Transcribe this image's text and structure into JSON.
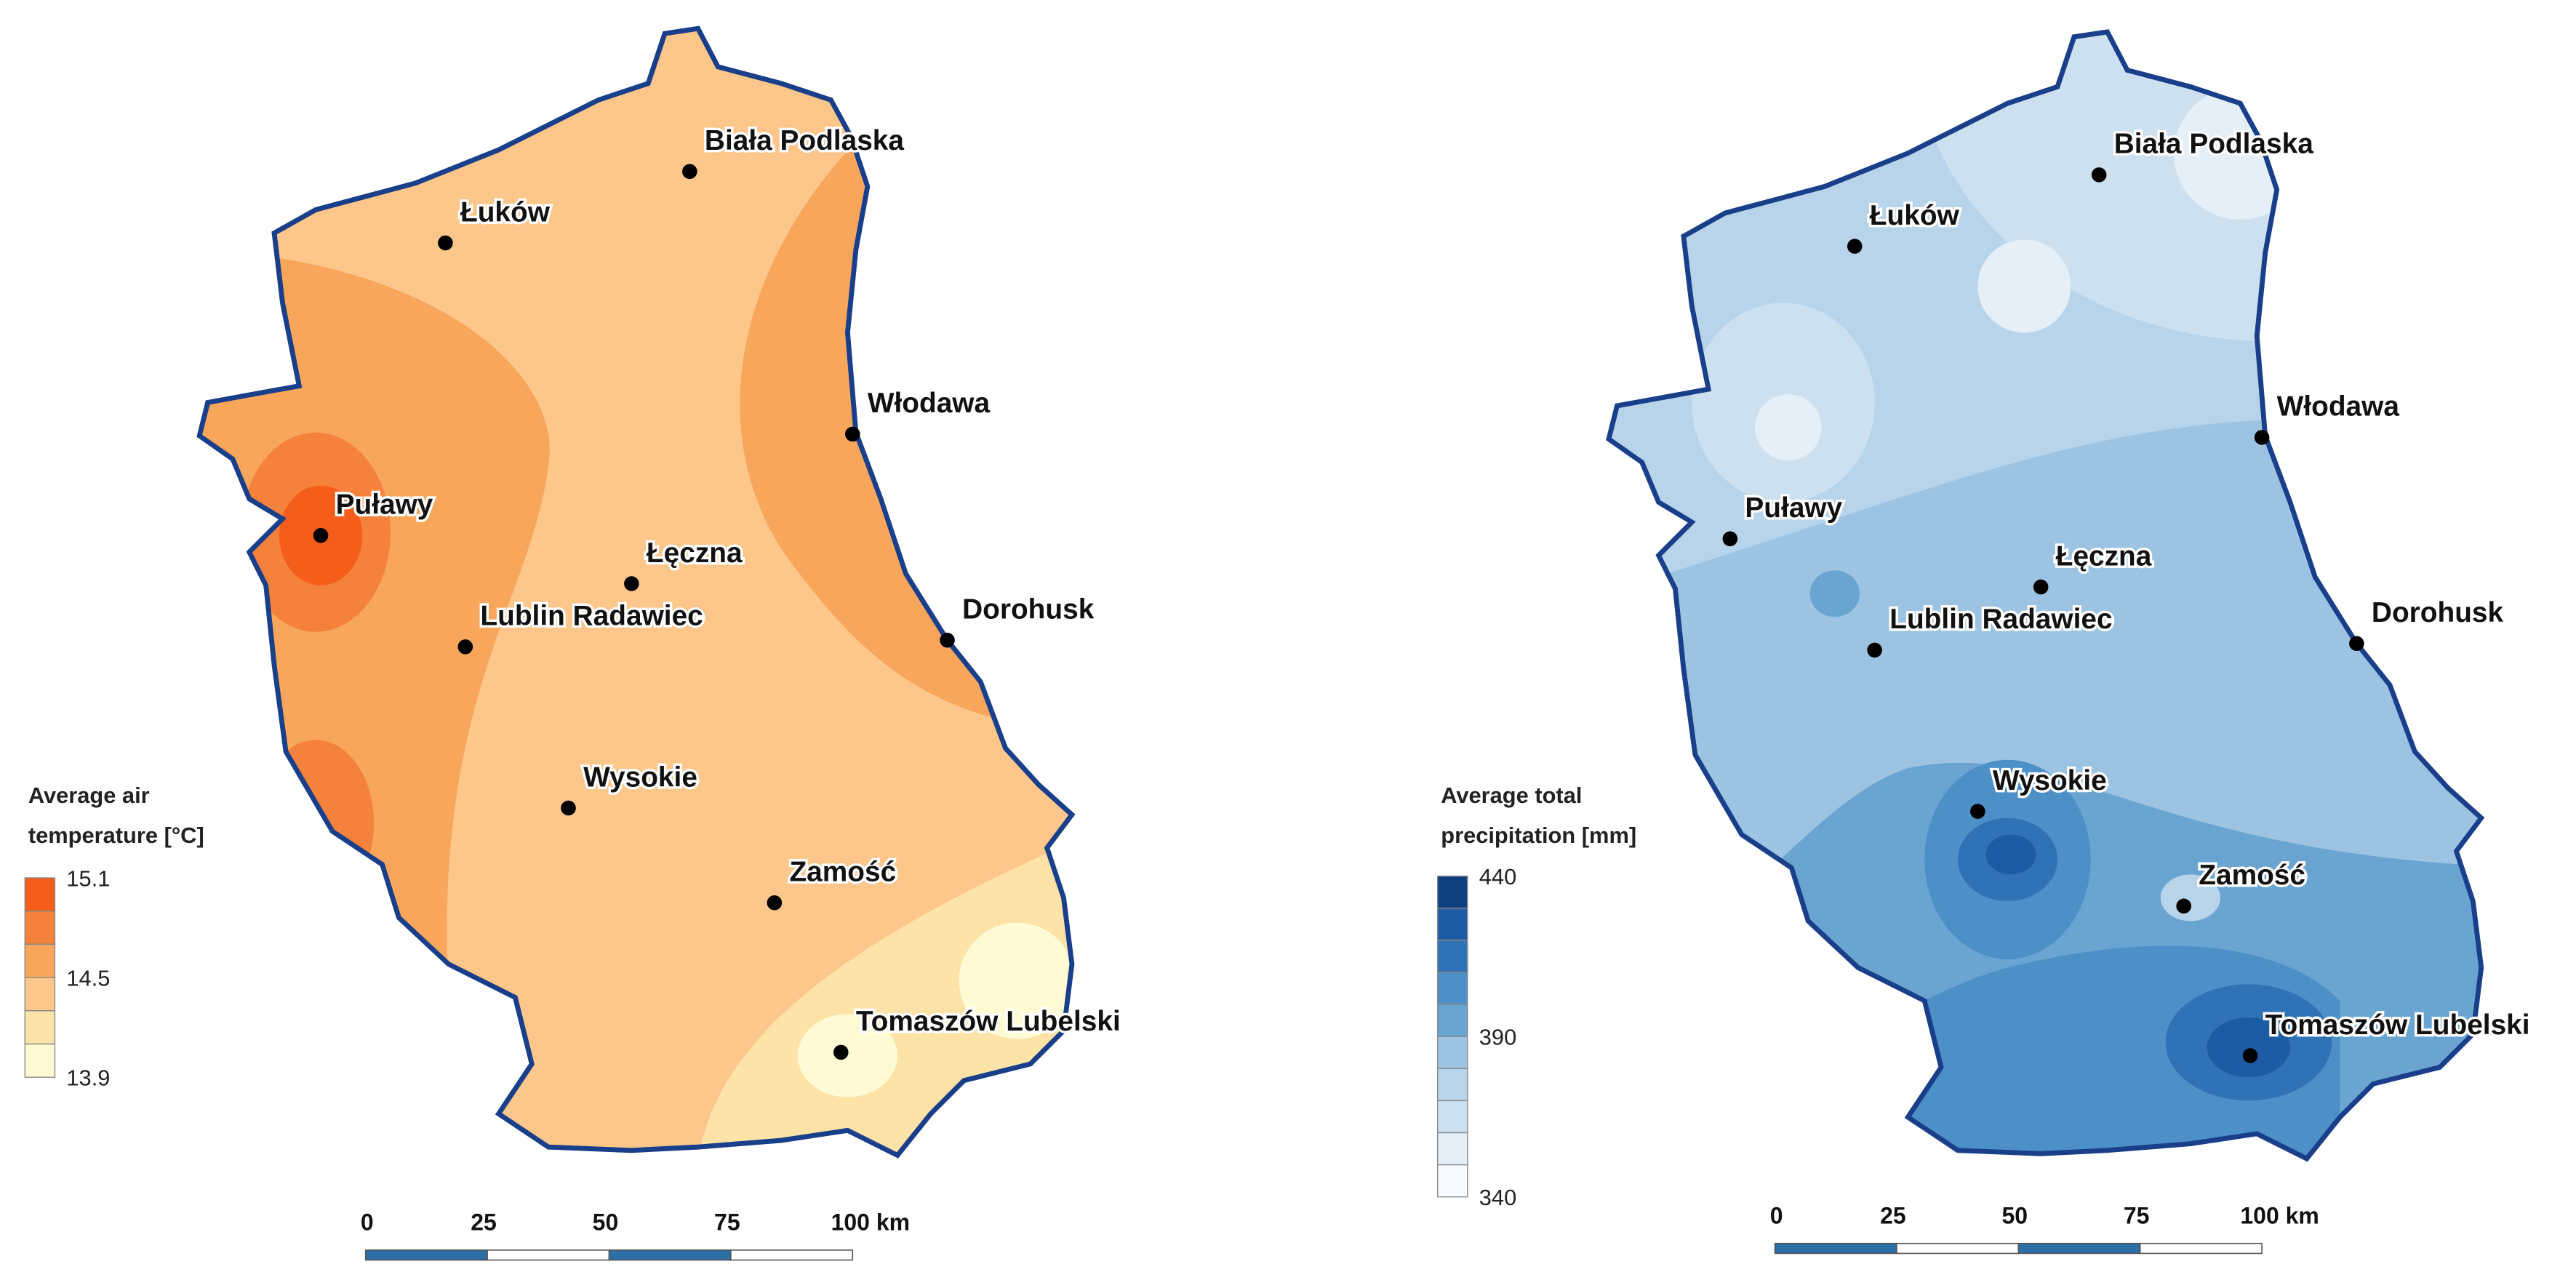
{
  "maps": [
    {
      "legend": {
        "title": [
          "Average air",
          "temperature [°C]"
        ],
        "labels": [
          "15.1",
          "14.5",
          "13.9"
        ]
      }
    },
    {
      "legend": {
        "title": [
          "Average total",
          "precipitation [mm]"
        ],
        "labels": [
          "440",
          "390",
          "340"
        ]
      }
    }
  ],
  "cities": [
    "Biała Podlaska",
    "Łuków",
    "Włodawa",
    "Puławy",
    "Łęczna",
    "Lublin Radawiec",
    "Dorohusk",
    "Wysokie",
    "Zamość",
    "Tomaszów Lubelski"
  ],
  "scale_bar": {
    "labels": [
      "0",
      "25",
      "50",
      "75",
      "100 km"
    ]
  }
}
